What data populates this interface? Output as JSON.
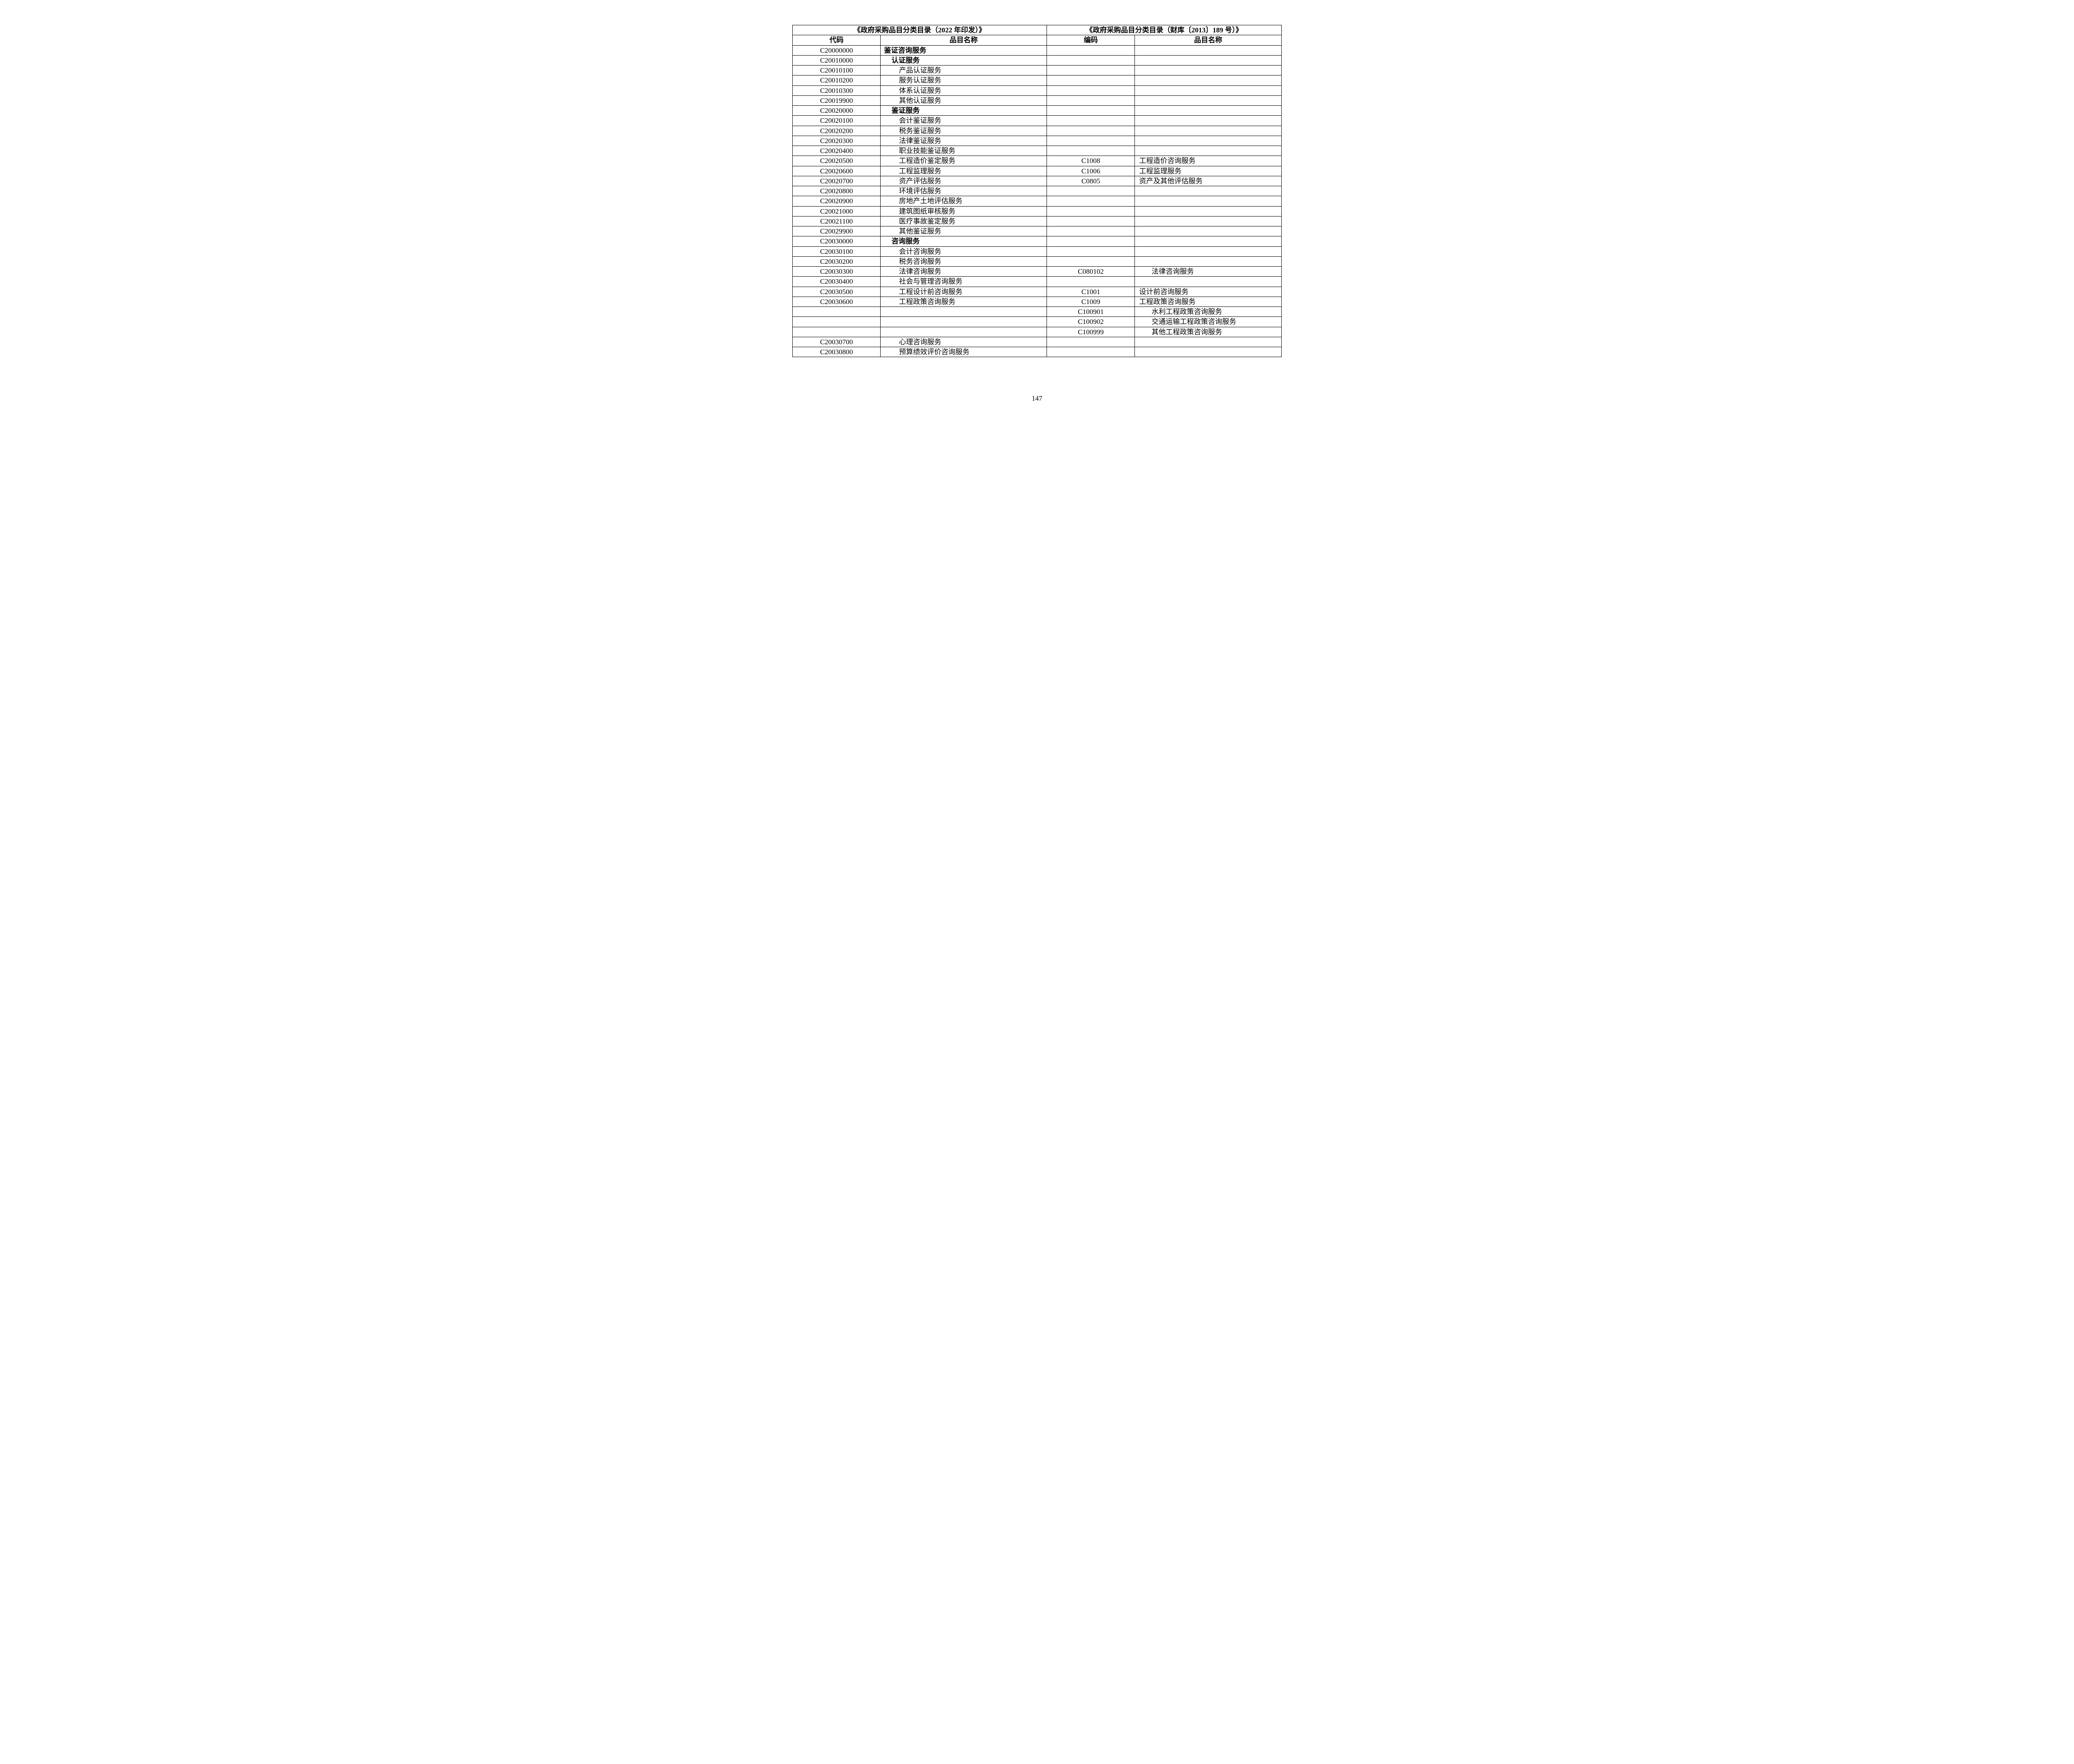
{
  "headers": {
    "group1": "《政府采购品目分类目录（2022 年印发）》",
    "group2": "《政府采购品目分类目录（财库〔2013〕189 号）》",
    "code1": "代码",
    "name1": "品目名称",
    "code2": "编码",
    "name2": "品目名称"
  },
  "rows": [
    {
      "code1": "C20000000",
      "name1": "鉴证咨询服务",
      "indent1": 0,
      "code2": "",
      "name2": "",
      "indent2": 0
    },
    {
      "code1": "C20010000",
      "name1": "认证服务",
      "indent1": 1,
      "code2": "",
      "name2": "",
      "indent2": 0
    },
    {
      "code1": "C20010100",
      "name1": "产品认证服务",
      "indent1": 2,
      "code2": "",
      "name2": "",
      "indent2": 0
    },
    {
      "code1": "C20010200",
      "name1": "服务认证服务",
      "indent1": 2,
      "code2": "",
      "name2": "",
      "indent2": 0
    },
    {
      "code1": "C20010300",
      "name1": "体系认证服务",
      "indent1": 2,
      "code2": "",
      "name2": "",
      "indent2": 0
    },
    {
      "code1": "C20019900",
      "name1": "其他认证服务",
      "indent1": 2,
      "code2": "",
      "name2": "",
      "indent2": 0
    },
    {
      "code1": "C20020000",
      "name1": "鉴证服务",
      "indent1": 1,
      "code2": "",
      "name2": "",
      "indent2": 0
    },
    {
      "code1": "C20020100",
      "name1": "会计鉴证服务",
      "indent1": 2,
      "code2": "",
      "name2": "",
      "indent2": 0
    },
    {
      "code1": "C20020200",
      "name1": "税务鉴证服务",
      "indent1": 2,
      "code2": "",
      "name2": "",
      "indent2": 0
    },
    {
      "code1": "C20020300",
      "name1": "法律鉴证服务",
      "indent1": 2,
      "code2": "",
      "name2": "",
      "indent2": 0
    },
    {
      "code1": "C20020400",
      "name1": "职业技能鉴证服务",
      "indent1": 2,
      "code2": "",
      "name2": "",
      "indent2": 0
    },
    {
      "code1": "C20020500",
      "name1": "工程造价鉴定服务",
      "indent1": 2,
      "code2": "C1008",
      "name2": "工程造价咨询服务",
      "indent2": 0
    },
    {
      "code1": "C20020600",
      "name1": "工程监理服务",
      "indent1": 2,
      "code2": "C1006",
      "name2": "工程监理服务",
      "indent2": 0
    },
    {
      "code1": "C20020700",
      "name1": "资产评估服务",
      "indent1": 2,
      "code2": "C0805",
      "name2": "资产及其他评估服务",
      "indent2": 0
    },
    {
      "code1": "C20020800",
      "name1": "环境评估服务",
      "indent1": 2,
      "code2": "",
      "name2": "",
      "indent2": 0
    },
    {
      "code1": "C20020900",
      "name1": "房地产土地评估服务",
      "indent1": 2,
      "code2": "",
      "name2": "",
      "indent2": 0
    },
    {
      "code1": "C20021000",
      "name1": "建筑图纸审核服务",
      "indent1": 2,
      "code2": "",
      "name2": "",
      "indent2": 0
    },
    {
      "code1": "C20021100",
      "name1": "医疗事故鉴定服务",
      "indent1": 2,
      "code2": "",
      "name2": "",
      "indent2": 0
    },
    {
      "code1": "C20029900",
      "name1": "其他鉴证服务",
      "indent1": 2,
      "code2": "",
      "name2": "",
      "indent2": 0
    },
    {
      "code1": "C20030000",
      "name1": "咨询服务",
      "indent1": 1,
      "code2": "",
      "name2": "",
      "indent2": 0
    },
    {
      "code1": "C20030100",
      "name1": "会计咨询服务",
      "indent1": 2,
      "code2": "",
      "name2": "",
      "indent2": 0
    },
    {
      "code1": "C20030200",
      "name1": "税务咨询服务",
      "indent1": 2,
      "code2": "",
      "name2": "",
      "indent2": 0
    },
    {
      "code1": "C20030300",
      "name1": "法律咨询服务",
      "indent1": 2,
      "code2": "C080102",
      "name2": "法律咨询服务",
      "indent2": 1
    },
    {
      "code1": "C20030400",
      "name1": "社会与管理咨询服务",
      "indent1": 2,
      "code2": "",
      "name2": "",
      "indent2": 0
    },
    {
      "code1": "C20030500",
      "name1": "工程设计前咨询服务",
      "indent1": 2,
      "code2": "C1001",
      "name2": "设计前咨询服务",
      "indent2": 0
    },
    {
      "code1": "C20030600",
      "name1": "工程政策咨询服务",
      "indent1": 2,
      "code2": "C1009",
      "name2": "工程政策咨询服务",
      "indent2": 0
    },
    {
      "code1": "",
      "name1": "",
      "indent1": 0,
      "code2": "C100901",
      "name2": "水利工程政策咨询服务",
      "indent2": 1
    },
    {
      "code1": "",
      "name1": "",
      "indent1": 0,
      "code2": "C100902",
      "name2": "交通运输工程政策咨询服务",
      "indent2": 1
    },
    {
      "code1": "",
      "name1": "",
      "indent1": 0,
      "code2": "C100999",
      "name2": "其他工程政策咨询服务",
      "indent2": 1
    },
    {
      "code1": "C20030700",
      "name1": "心理咨询服务",
      "indent1": 2,
      "code2": "",
      "name2": "",
      "indent2": 0
    },
    {
      "code1": "C20030800",
      "name1": "预算绩效评价咨询服务",
      "indent1": 2,
      "code2": "",
      "name2": "",
      "indent2": 0
    }
  ],
  "page_number": "147",
  "styles": {
    "border_color": "#000000",
    "background_color": "#ffffff",
    "font_size_pt": 12,
    "header_font_weight": "bold"
  }
}
